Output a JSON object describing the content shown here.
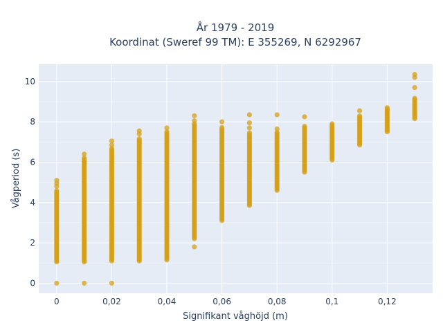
{
  "chart_data": {
    "type": "scatter",
    "title_line1": "År 1979 - 2019",
    "title_line2": "Koordinat (Sweref 99 TM): E 355269, N 6292967",
    "xlabel": "Signifikant våghöjd (m)",
    "ylabel": "Vågperiod (s)",
    "xlim": [
      -0.0065,
      0.1365
    ],
    "ylim": [
      -0.5,
      10.85
    ],
    "x_ticks": [
      0,
      0.02,
      0.04,
      0.06,
      0.08,
      0.1,
      0.12
    ],
    "x_tick_labels": [
      "0",
      "0,02",
      "0,04",
      "0,06",
      "0,08",
      "0,1",
      "0,12"
    ],
    "y_ticks": [
      0,
      2,
      4,
      6,
      8,
      10
    ],
    "y_tick_labels": [
      "0",
      "2",
      "4",
      "6",
      "8",
      "10"
    ],
    "grid": true,
    "marker_color": "#d4a017",
    "plot_bg": "#e5ecf6",
    "columns": [
      {
        "x": 0.0,
        "y_min": 1.05,
        "y_max": 4.6,
        "extra_y": [
          0.0,
          4.8,
          4.95,
          5.1
        ]
      },
      {
        "x": 0.01,
        "y_min": 1.05,
        "y_max": 6.25,
        "extra_y": [
          0.0,
          6.4
        ]
      },
      {
        "x": 0.02,
        "y_min": 1.1,
        "y_max": 6.7,
        "extra_y": [
          0.0,
          6.85,
          7.05
        ]
      },
      {
        "x": 0.03,
        "y_min": 1.1,
        "y_max": 7.2,
        "extra_y": [
          7.4,
          7.55
        ]
      },
      {
        "x": 0.04,
        "y_min": 1.15,
        "y_max": 7.55,
        "extra_y": [
          7.7
        ]
      },
      {
        "x": 0.05,
        "y_min": 2.2,
        "y_max": 7.95,
        "extra_y": [
          1.8,
          8.05,
          8.3
        ]
      },
      {
        "x": 0.06,
        "y_min": 3.1,
        "y_max": 7.75,
        "extra_y": [
          8.0
        ]
      },
      {
        "x": 0.07,
        "y_min": 3.85,
        "y_max": 7.45,
        "extra_y": [
          7.7,
          7.95,
          8.35
        ]
      },
      {
        "x": 0.08,
        "y_min": 4.6,
        "y_max": 7.5,
        "extra_y": [
          7.65,
          8.35
        ]
      },
      {
        "x": 0.09,
        "y_min": 5.5,
        "y_max": 7.8,
        "extra_y": [
          8.25
        ]
      },
      {
        "x": 0.1,
        "y_min": 6.1,
        "y_max": 7.9,
        "extra_y": []
      },
      {
        "x": 0.11,
        "y_min": 6.85,
        "y_max": 8.3,
        "extra_y": [
          8.55
        ]
      },
      {
        "x": 0.12,
        "y_min": 7.5,
        "y_max": 8.7,
        "extra_y": []
      },
      {
        "x": 0.13,
        "y_min": 8.15,
        "y_max": 9.2,
        "extra_y": [
          9.7,
          10.2,
          10.35
        ]
      }
    ]
  }
}
